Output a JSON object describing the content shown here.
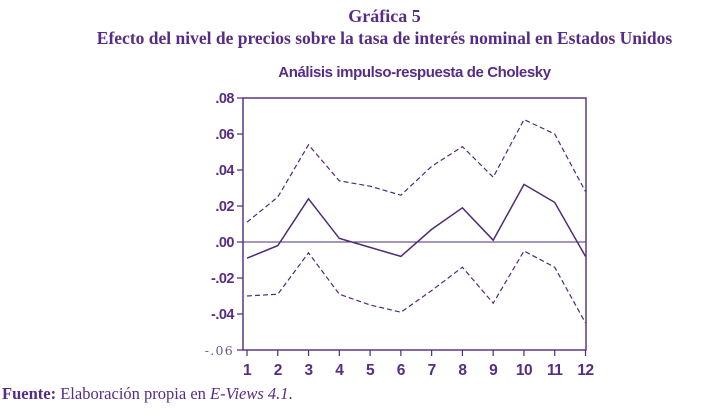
{
  "header": {
    "title": "Gráfica 5",
    "subtitle": "Efecto del nivel de precios sobre la tasa de interés nominal en Estados Unidos"
  },
  "footer": {
    "label": "Fuente:",
    "text": " Elaboración propia en ",
    "software": "E-Views 4.1",
    "period": "."
  },
  "colors": {
    "accent": "#562c85",
    "line": "#4e2b79"
  },
  "chart_data": {
    "type": "line",
    "title": "Análisis impulso-respuesta de Cholesky",
    "xlabel": "",
    "ylabel": "",
    "x": [
      1,
      2,
      3,
      4,
      5,
      6,
      7,
      8,
      9,
      10,
      11,
      12
    ],
    "x_labels": [
      "1",
      "2",
      "3",
      "4",
      "5",
      "6",
      "7",
      "8",
      "9",
      "10",
      "11",
      "12"
    ],
    "ylim": [
      -0.06,
      0.08
    ],
    "y_ticks": [
      {
        "value": 0.08,
        "label": ".08"
      },
      {
        "value": 0.06,
        "label": ".06"
      },
      {
        "value": 0.04,
        "label": ".04"
      },
      {
        "value": 0.02,
        "label": ".02"
      },
      {
        "value": 0.0,
        "label": ".00"
      },
      {
        "value": -0.02,
        "label": "-.02"
      },
      {
        "value": -0.04,
        "label": "-.04"
      },
      {
        "value": -0.06,
        "label": "-.06"
      }
    ],
    "grid": false,
    "legend": false,
    "zero_line": true,
    "series": [
      {
        "name": "respuesta",
        "style": "solid",
        "values": [
          -0.009,
          -0.002,
          0.024,
          0.002,
          -0.003,
          -0.008,
          0.007,
          0.019,
          0.001,
          0.032,
          0.022,
          -0.008
        ]
      },
      {
        "name": "banda-superior-2se",
        "style": "dashed",
        "values": [
          0.011,
          0.025,
          0.054,
          0.034,
          0.031,
          0.026,
          0.042,
          0.053,
          0.036,
          0.068,
          0.06,
          0.028
        ]
      },
      {
        "name": "banda-inferior-2se",
        "style": "dashed",
        "values": [
          -0.03,
          -0.029,
          -0.006,
          -0.029,
          -0.035,
          -0.039,
          -0.027,
          -0.014,
          -0.034,
          -0.005,
          -0.014,
          -0.045
        ]
      }
    ]
  }
}
